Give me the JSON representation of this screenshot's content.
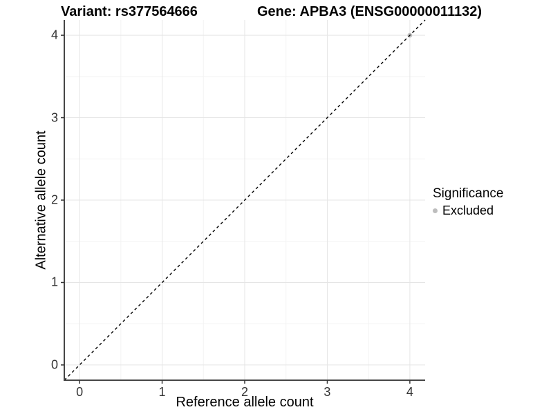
{
  "titles": {
    "variant": "Variant: rs377564666",
    "gene": "Gene: APBA3 (ENSG00000011132)"
  },
  "chart_data": {
    "type": "scatter",
    "title_left": "Variant: rs377564666",
    "title_right": "Gene: APBA3 (ENSG00000011132)",
    "xlabel": "Reference allele count",
    "ylabel": "Alternative allele count",
    "xlim": [
      -0.185,
      4.185
    ],
    "ylim": [
      -0.185,
      4.185
    ],
    "xticks": [
      0,
      1,
      2,
      3,
      4
    ],
    "yticks": [
      0,
      1,
      2,
      3,
      4
    ],
    "minor_xticks": [
      0.5,
      1.5,
      2.5,
      3.5
    ],
    "minor_yticks": [
      0.5,
      1.5,
      2.5,
      3.5
    ],
    "grid": "major+minor",
    "points": [
      {
        "x": 4,
        "y": 4,
        "series": "Excluded"
      }
    ],
    "reference_line": {
      "type": "identity",
      "style": "dashed",
      "color": "#000000"
    },
    "legend": {
      "title": "Significance",
      "position": "right",
      "items": [
        {
          "label": "Excluded",
          "color": "#bdbdbd"
        }
      ]
    },
    "colors": {
      "background": "#ffffff",
      "grid_major": "#e5e5e5",
      "grid_minor": "#f3f3f3",
      "axis_line": "#454545",
      "tick_mark": "#333333",
      "tick_text": "#333333",
      "point": "#bdbdbd"
    }
  }
}
